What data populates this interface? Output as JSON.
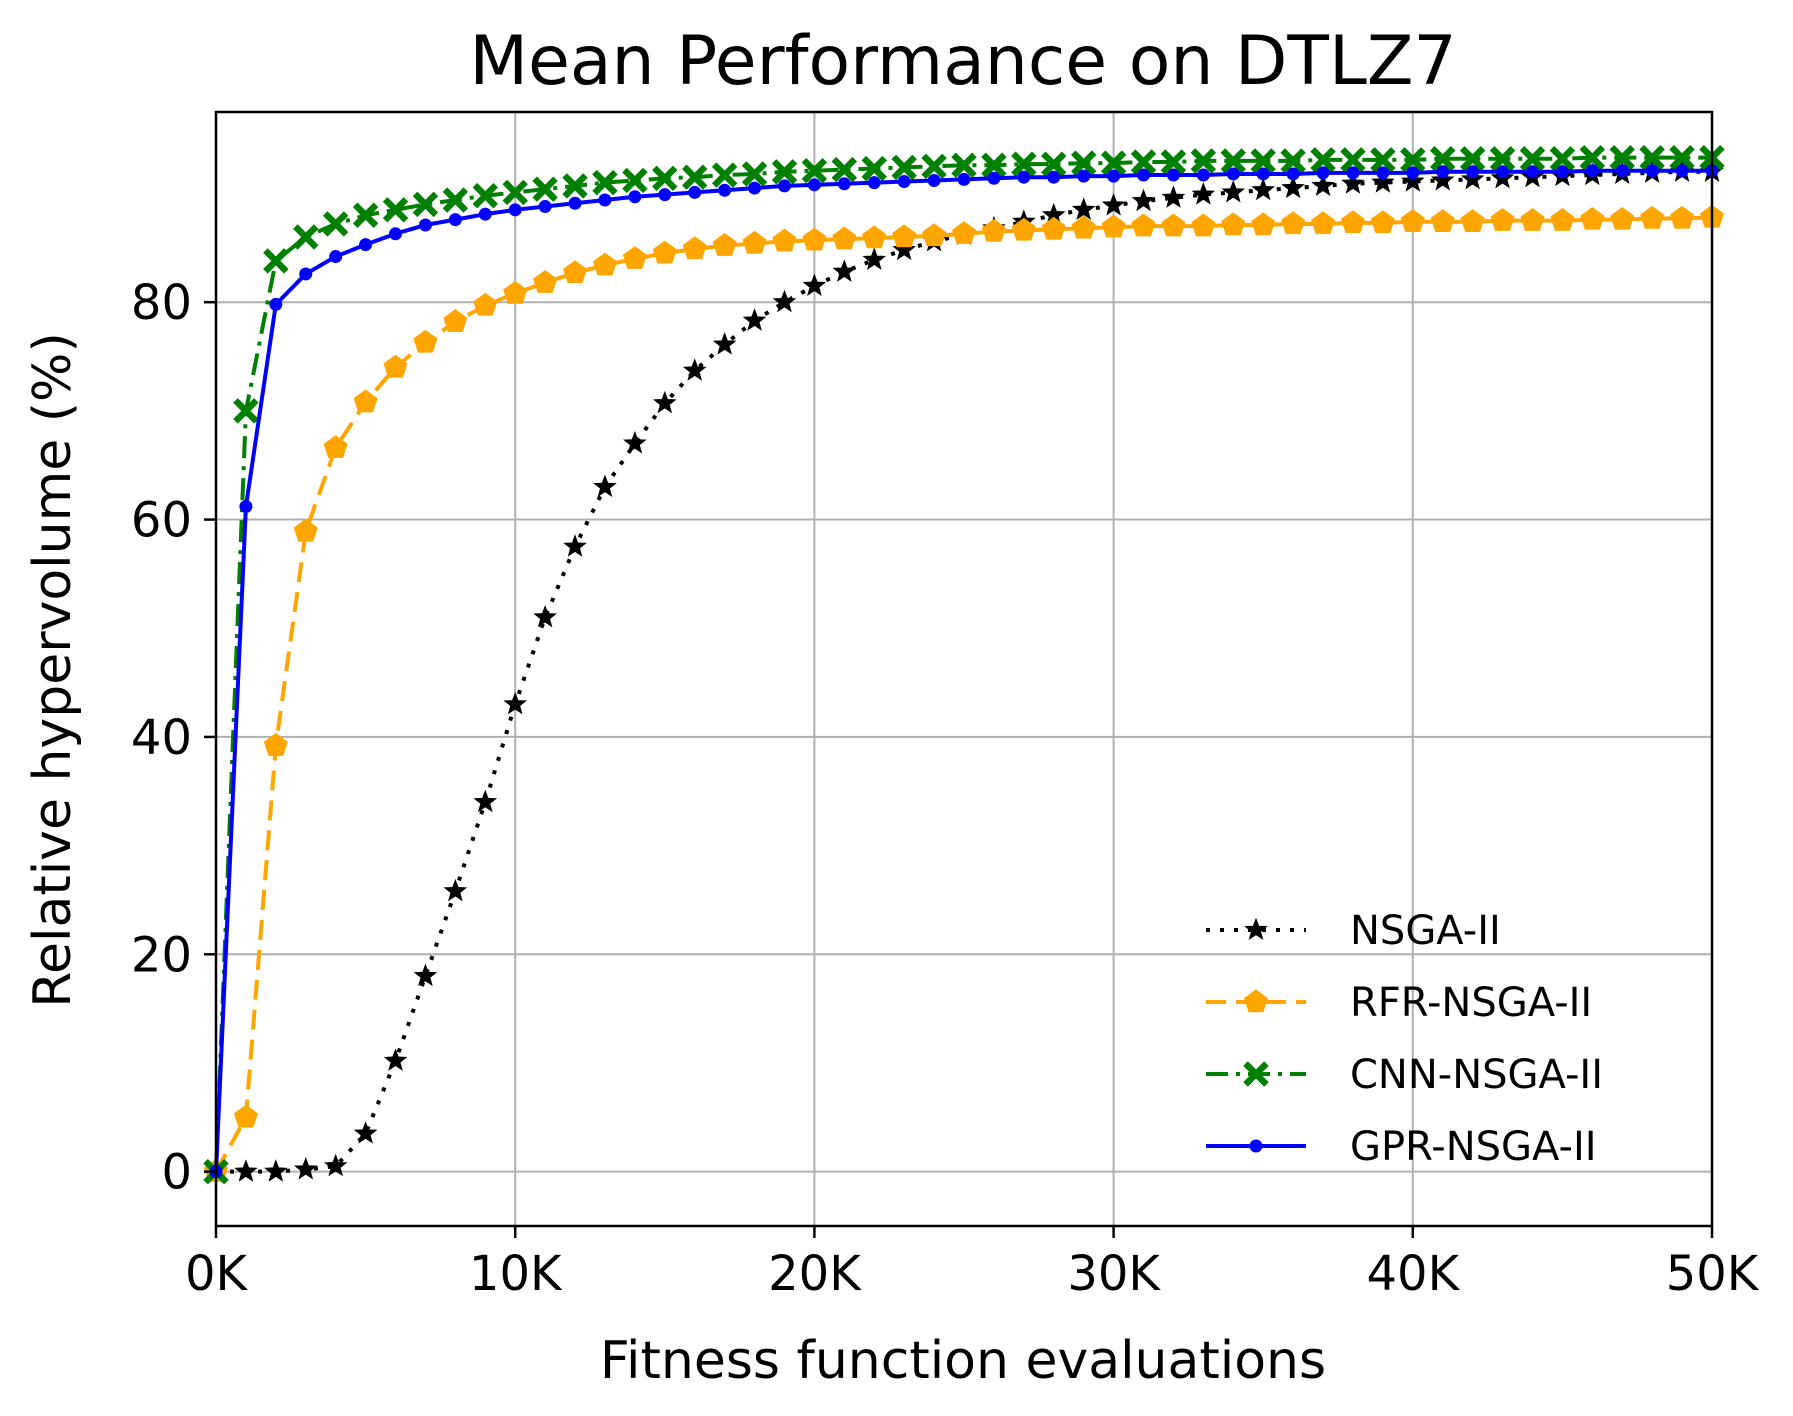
{
  "chart_data": {
    "type": "line",
    "title": "Mean Performance on DTLZ7",
    "xlabel": "Fitness function evaluations",
    "ylabel": "Relative hypervolume (%)",
    "xlim": [
      0,
      50000
    ],
    "ylim": [
      -5,
      97.5
    ],
    "grid": true,
    "legend_position": "lower-right",
    "x_ticks": [
      0,
      10000,
      20000,
      30000,
      40000,
      50000
    ],
    "x_tick_labels": [
      "0K",
      "10K",
      "20K",
      "30K",
      "40K",
      "50K"
    ],
    "y_ticks": [
      0,
      20,
      40,
      60,
      80
    ],
    "y_tick_labels": [
      "0",
      "20",
      "40",
      "60",
      "80"
    ],
    "x": [
      0,
      1000,
      2000,
      3000,
      4000,
      5000,
      6000,
      7000,
      8000,
      9000,
      10000,
      11000,
      12000,
      13000,
      14000,
      15000,
      16000,
      17000,
      18000,
      19000,
      20000,
      21000,
      22000,
      23000,
      24000,
      25000,
      26000,
      27000,
      28000,
      29000,
      30000,
      31000,
      32000,
      33000,
      34000,
      35000,
      36000,
      37000,
      38000,
      39000,
      40000,
      41000,
      42000,
      43000,
      44000,
      45000,
      46000,
      47000,
      48000,
      49000,
      50000
    ],
    "series": [
      {
        "name": "NSGA-II",
        "color": "#000000",
        "line_style": "dotted",
        "marker": "star",
        "values": [
          0,
          0,
          0,
          0.2,
          0.5,
          3.5,
          10.2,
          18.0,
          25.8,
          34.0,
          43.0,
          51.0,
          57.5,
          63.0,
          67.0,
          70.7,
          73.7,
          76.1,
          78.3,
          80.0,
          81.5,
          82.8,
          83.9,
          84.8,
          85.6,
          86.2,
          86.8,
          87.4,
          88.0,
          88.5,
          88.9,
          89.3,
          89.6,
          89.9,
          90.1,
          90.3,
          90.5,
          90.7,
          90.9,
          91.0,
          91.1,
          91.2,
          91.3,
          91.4,
          91.5,
          91.6,
          91.7,
          91.8,
          91.9,
          92.0,
          92.0
        ]
      },
      {
        "name": "RFR-NSGA-II",
        "color": "#ffa500",
        "line_style": "dashed",
        "marker": "pentagon",
        "values": [
          0,
          5.0,
          39.2,
          58.9,
          66.6,
          70.8,
          74.0,
          76.3,
          78.2,
          79.7,
          80.8,
          81.8,
          82.7,
          83.4,
          84.0,
          84.5,
          84.9,
          85.2,
          85.4,
          85.6,
          85.7,
          85.8,
          85.9,
          86.0,
          86.1,
          86.3,
          86.5,
          86.6,
          86.7,
          86.8,
          86.9,
          87.0,
          87.0,
          87.0,
          87.1,
          87.1,
          87.2,
          87.2,
          87.3,
          87.3,
          87.4,
          87.4,
          87.4,
          87.5,
          87.5,
          87.5,
          87.6,
          87.6,
          87.7,
          87.7,
          87.8
        ]
      },
      {
        "name": "CNN-NSGA-II",
        "color": "#008000",
        "line_style": "dashdot",
        "marker": "x-filled",
        "values": [
          0,
          70.0,
          83.8,
          86.0,
          87.2,
          88.0,
          88.5,
          89.0,
          89.4,
          89.8,
          90.1,
          90.4,
          90.7,
          91.0,
          91.2,
          91.4,
          91.5,
          91.7,
          91.8,
          92.0,
          92.1,
          92.2,
          92.3,
          92.4,
          92.5,
          92.6,
          92.6,
          92.7,
          92.7,
          92.8,
          92.8,
          92.9,
          92.9,
          93.0,
          93.0,
          93.0,
          93.0,
          93.1,
          93.1,
          93.1,
          93.1,
          93.2,
          93.2,
          93.2,
          93.2,
          93.2,
          93.3,
          93.3,
          93.3,
          93.3,
          93.3
        ]
      },
      {
        "name": "GPR-NSGA-II",
        "color": "#0000ff",
        "line_style": "solid",
        "marker": "dot",
        "values": [
          0,
          61.2,
          79.8,
          82.6,
          84.2,
          85.3,
          86.3,
          87.1,
          87.6,
          88.1,
          88.5,
          88.8,
          89.1,
          89.4,
          89.7,
          89.9,
          90.1,
          90.3,
          90.5,
          90.7,
          90.8,
          90.9,
          91.0,
          91.1,
          91.2,
          91.3,
          91.4,
          91.5,
          91.5,
          91.6,
          91.6,
          91.7,
          91.7,
          91.7,
          91.8,
          91.8,
          91.8,
          91.9,
          91.9,
          91.9,
          91.9,
          92.0,
          92.0,
          92.0,
          92.0,
          92.0,
          92.1,
          92.1,
          92.1,
          92.1,
          92.1
        ]
      }
    ]
  }
}
